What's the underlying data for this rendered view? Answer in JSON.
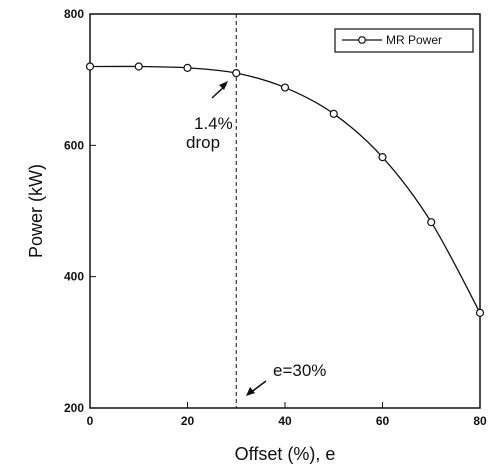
{
  "chart_data": {
    "type": "line",
    "xlabel": "Offset (%), e",
    "ylabel": "Power (kW)",
    "xlim": [
      0,
      80
    ],
    "ylim": [
      200,
      800
    ],
    "xticks": [
      0,
      20,
      40,
      60,
      80
    ],
    "yticks": [
      200,
      400,
      600,
      800
    ],
    "legend_placement": "top-right",
    "grid": false,
    "series": [
      {
        "name": "MR Power",
        "marker": "circle",
        "x": [
          0,
          10,
          20,
          30,
          40,
          50,
          60,
          70,
          80
        ],
        "y": [
          720,
          720,
          718,
          710,
          688,
          648,
          582,
          483,
          345
        ]
      }
    ],
    "vline": {
      "x": 30,
      "label": "e=30%"
    },
    "annotations": [
      {
        "line1": "1.4%",
        "line2": "drop"
      }
    ]
  }
}
